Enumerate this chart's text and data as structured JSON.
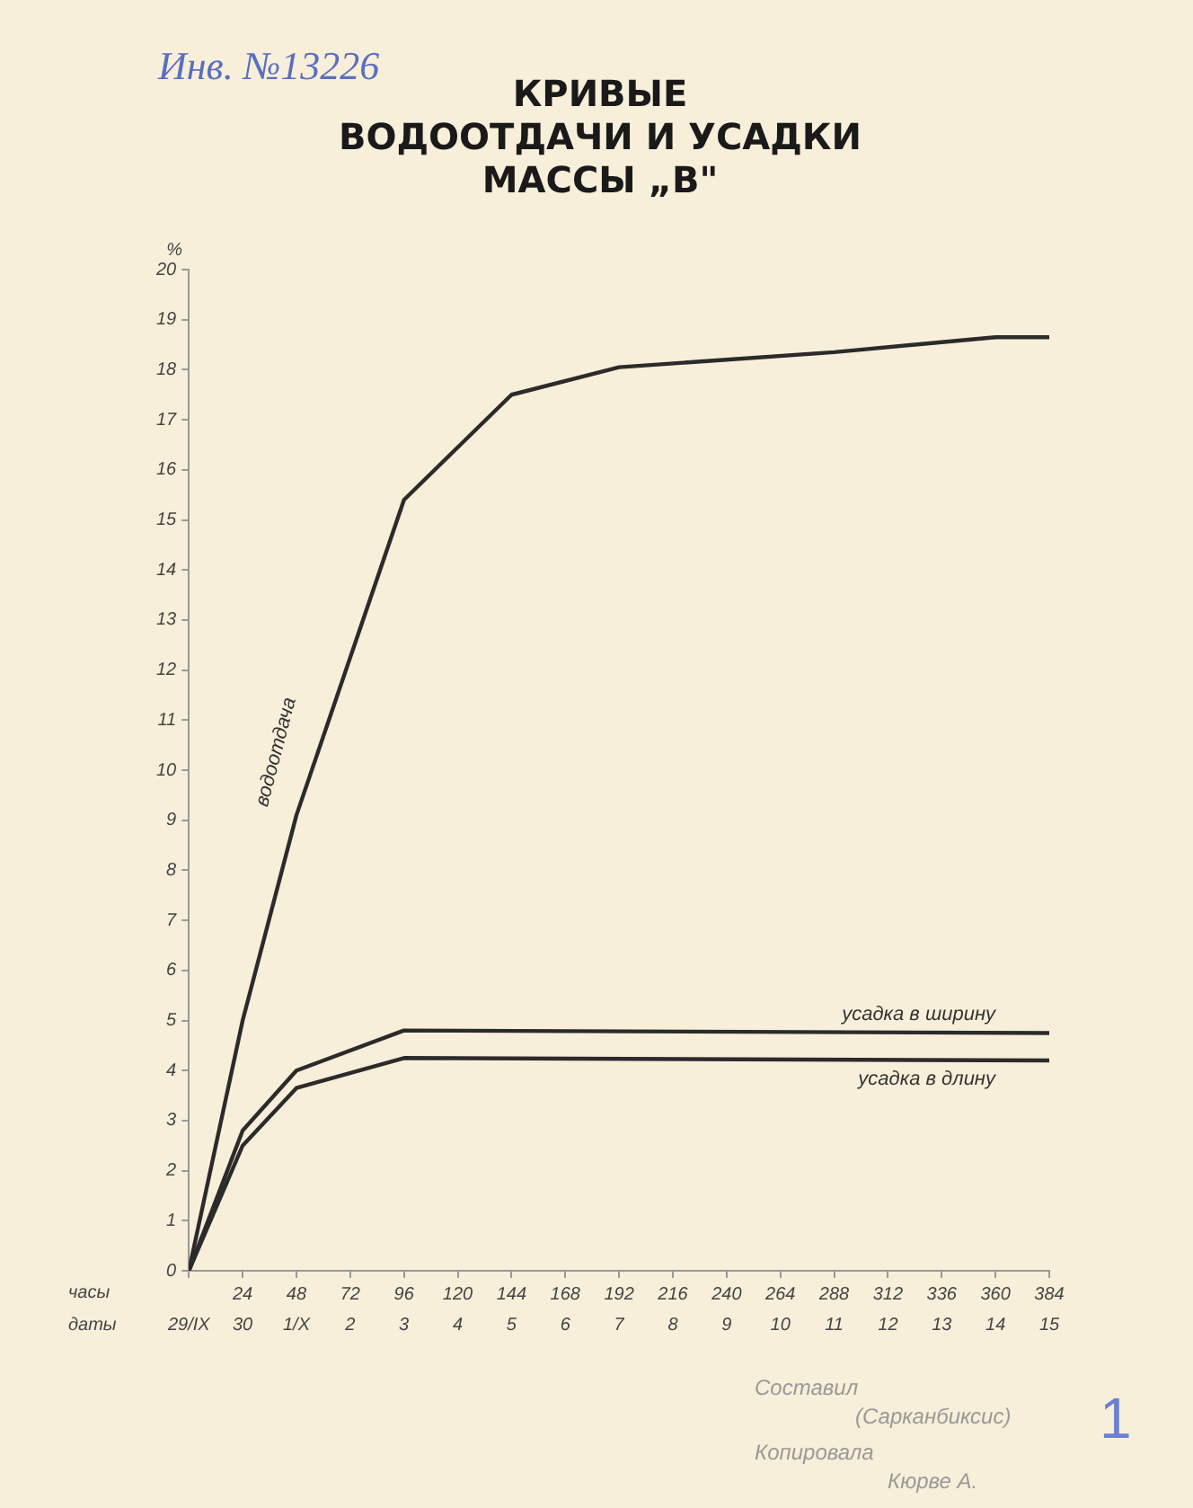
{
  "chart_data": {
    "type": "line",
    "title": "КРИВЫЕ\nВОДООТДАЧИ И УСАДКИ\nМАССЫ „В\"",
    "xlabel": "часы",
    "ylabel": "%",
    "x": [
      0,
      24,
      48,
      96,
      144,
      192,
      240,
      288,
      336,
      360,
      384
    ],
    "series": [
      {
        "name": "водоотдача",
        "color": "#2b2b2b",
        "values": [
          0,
          5,
          9.1,
          15.4,
          17.5,
          18.05,
          18.2,
          18.35,
          18.55,
          18.65,
          18.65
        ]
      },
      {
        "name": "усадка в ширину",
        "color": "#2b2b2b",
        "x": [
          0,
          24,
          48,
          96,
          384
        ],
        "values": [
          0,
          2.8,
          4,
          4.8,
          4.75
        ]
      },
      {
        "name": "усадка в длину",
        "color": "#2b2b2b",
        "x": [
          0,
          24,
          48,
          96,
          384
        ],
        "values": [
          0,
          2.5,
          3.65,
          4.25,
          4.2
        ]
      }
    ],
    "xlim": [
      0,
      384
    ],
    "xticks": [
      {
        "value": 0,
        "label": null
      },
      24,
      48,
      72,
      96,
      120,
      144,
      168,
      192,
      216,
      240,
      264,
      288,
      312,
      336,
      360,
      384
    ],
    "ylim": [
      0,
      20
    ],
    "yticks": [
      0,
      1,
      2,
      3,
      4,
      5,
      6,
      7,
      8,
      9,
      10,
      11,
      12,
      13,
      14,
      15,
      16,
      17,
      18,
      19,
      20
    ],
    "annotations": [
      "Инв. №13226",
      "Составил",
      "(Сарканбиксис)",
      "Копировала",
      "Кюрве А.",
      "1",
      "даты",
      "29/IX",
      "30",
      "1/X",
      "2",
      "3",
      "4",
      "5",
      "6",
      "7",
      "8",
      "9",
      "10",
      "11",
      "12",
      "13",
      "14",
      "15"
    ],
    "grid": false,
    "legend": false,
    "marker": "none",
    "line_style": "solid"
  }
}
